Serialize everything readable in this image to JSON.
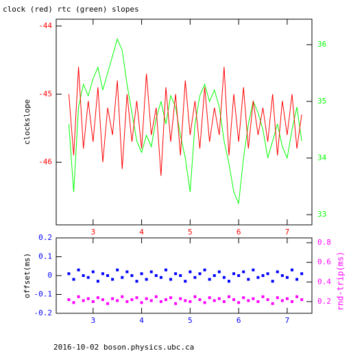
{
  "chart_data": [
    {
      "type": "line",
      "title": "clock (red) rtc (green) slopes",
      "ylabel": "clockslope",
      "x": [
        2.5,
        2.6,
        2.7,
        2.8,
        2.9,
        3.0,
        3.1,
        3.2,
        3.3,
        3.4,
        3.5,
        3.6,
        3.7,
        3.8,
        3.9,
        4.0,
        4.1,
        4.2,
        4.3,
        4.4,
        4.5,
        4.6,
        4.7,
        4.8,
        4.9,
        5.0,
        5.1,
        5.2,
        5.3,
        5.4,
        5.5,
        5.6,
        5.7,
        5.8,
        5.9,
        6.0,
        6.1,
        6.2,
        6.3,
        6.4,
        6.5,
        6.6,
        6.7,
        6.8,
        6.9,
        7.0,
        7.1,
        7.2,
        7.3
      ],
      "xlim": [
        2.24,
        7.51
      ],
      "xticks": [
        3,
        4,
        5,
        6,
        7
      ],
      "xtick_color": "#ff0000",
      "ylim": [
        -46.92,
        -43.9
      ],
      "yticks": [
        -44,
        -45,
        -46
      ],
      "ytick_color": "#ff0000",
      "y2lim": [
        32.82,
        36.45
      ],
      "y2ticks": [
        33,
        34,
        35,
        36
      ],
      "y2tick_color": "#00ff00",
      "series": [
        {
          "color": "#ff0000",
          "values": [
            -45.0,
            -45.9,
            -44.6,
            -45.8,
            -45.1,
            -45.7,
            -44.9,
            -46.0,
            -45.2,
            -45.6,
            -44.8,
            -46.1,
            -45.0,
            -45.7,
            -45.1,
            -45.8,
            -44.7,
            -45.6,
            -45.2,
            -46.2,
            -44.9,
            -45.7,
            -45.0,
            -45.9,
            -44.8,
            -45.6,
            -45.1,
            -45.8,
            -44.9,
            -45.7,
            -45.2,
            -45.6,
            -44.6,
            -45.9,
            -45.0,
            -45.7,
            -44.9,
            -45.8,
            -45.1,
            -45.6,
            -45.2,
            -45.7,
            -45.0,
            -45.9,
            -45.1,
            -45.6,
            -45.0,
            -45.8,
            -45.3
          ]
        },
        {
          "color": "#00ff00",
          "axis": "y2",
          "values": [
            34.6,
            33.4,
            34.9,
            35.3,
            35.1,
            35.4,
            35.6,
            35.2,
            35.5,
            35.8,
            36.1,
            35.9,
            35.3,
            34.8,
            34.3,
            34.1,
            34.4,
            34.2,
            34.7,
            35.0,
            34.6,
            35.1,
            34.9,
            34.4,
            34.0,
            33.4,
            34.6,
            35.1,
            35.3,
            35.0,
            35.2,
            34.9,
            34.3,
            33.9,
            33.4,
            33.2,
            34.0,
            34.6,
            35.0,
            34.8,
            34.5,
            34.0,
            34.3,
            34.6,
            34.2,
            34.0,
            34.5,
            34.9,
            34.3
          ]
        }
      ]
    },
    {
      "type": "scatter",
      "ylabel": "offset(ms)",
      "y2label": "rnd-trip(ms)",
      "x": [
        2.5,
        2.6,
        2.7,
        2.8,
        2.9,
        3.0,
        3.1,
        3.2,
        3.3,
        3.4,
        3.5,
        3.6,
        3.7,
        3.8,
        3.9,
        4.0,
        4.1,
        4.2,
        4.3,
        4.4,
        4.5,
        4.6,
        4.7,
        4.8,
        4.9,
        5.0,
        5.1,
        5.2,
        5.3,
        5.4,
        5.5,
        5.6,
        5.7,
        5.8,
        5.9,
        6.0,
        6.1,
        6.2,
        6.3,
        6.4,
        6.5,
        6.6,
        6.7,
        6.8,
        6.9,
        7.0,
        7.1,
        7.2,
        7.3
      ],
      "xlim": [
        2.24,
        7.51
      ],
      "xticks": [
        3,
        4,
        5,
        6,
        7
      ],
      "xtick_color": "#0000ff",
      "ylim": [
        -0.2,
        0.2
      ],
      "yticks": [
        0.2,
        0.1,
        0,
        -0.1,
        -0.2
      ],
      "ytick_color": "#0000ff",
      "y2lim": [
        0.081,
        0.849
      ],
      "y2ticks": [
        0.2,
        0.4,
        0.6,
        0.8
      ],
      "y2tick_color": "#ff00ff",
      "series": [
        {
          "color": "#0000ff",
          "values": [
            0.01,
            -0.02,
            0.03,
            0.0,
            -0.01,
            0.02,
            -0.03,
            0.01,
            0.0,
            -0.02,
            0.03,
            -0.01,
            0.02,
            0.0,
            -0.03,
            0.01,
            -0.02,
            0.02,
            0.0,
            -0.01,
            0.03,
            -0.02,
            0.01,
            0.0,
            -0.03,
            0.02,
            -0.01,
            0.01,
            0.03,
            -0.02,
            0.0,
            0.02,
            -0.01,
            -0.03,
            0.01,
            0.0,
            0.02,
            -0.02,
            0.03,
            -0.01,
            0.0,
            0.01,
            -0.03,
            0.02,
            0.0,
            -0.01,
            0.03,
            -0.02,
            0.01
          ]
        },
        {
          "color": "#ff00ff",
          "axis": "y2",
          "values": [
            0.22,
            0.19,
            0.25,
            0.21,
            0.23,
            0.2,
            0.24,
            0.22,
            0.18,
            0.23,
            0.21,
            0.25,
            0.2,
            0.22,
            0.24,
            0.19,
            0.23,
            0.21,
            0.25,
            0.2,
            0.22,
            0.24,
            0.18,
            0.23,
            0.21,
            0.2,
            0.25,
            0.22,
            0.19,
            0.24,
            0.21,
            0.23,
            0.2,
            0.25,
            0.22,
            0.19,
            0.24,
            0.21,
            0.23,
            0.2,
            0.25,
            0.22,
            0.18,
            0.24,
            0.21,
            0.23,
            0.2,
            0.25,
            0.22
          ]
        }
      ]
    }
  ],
  "footer": "2016-10-02 boson.physics.ubc.ca"
}
